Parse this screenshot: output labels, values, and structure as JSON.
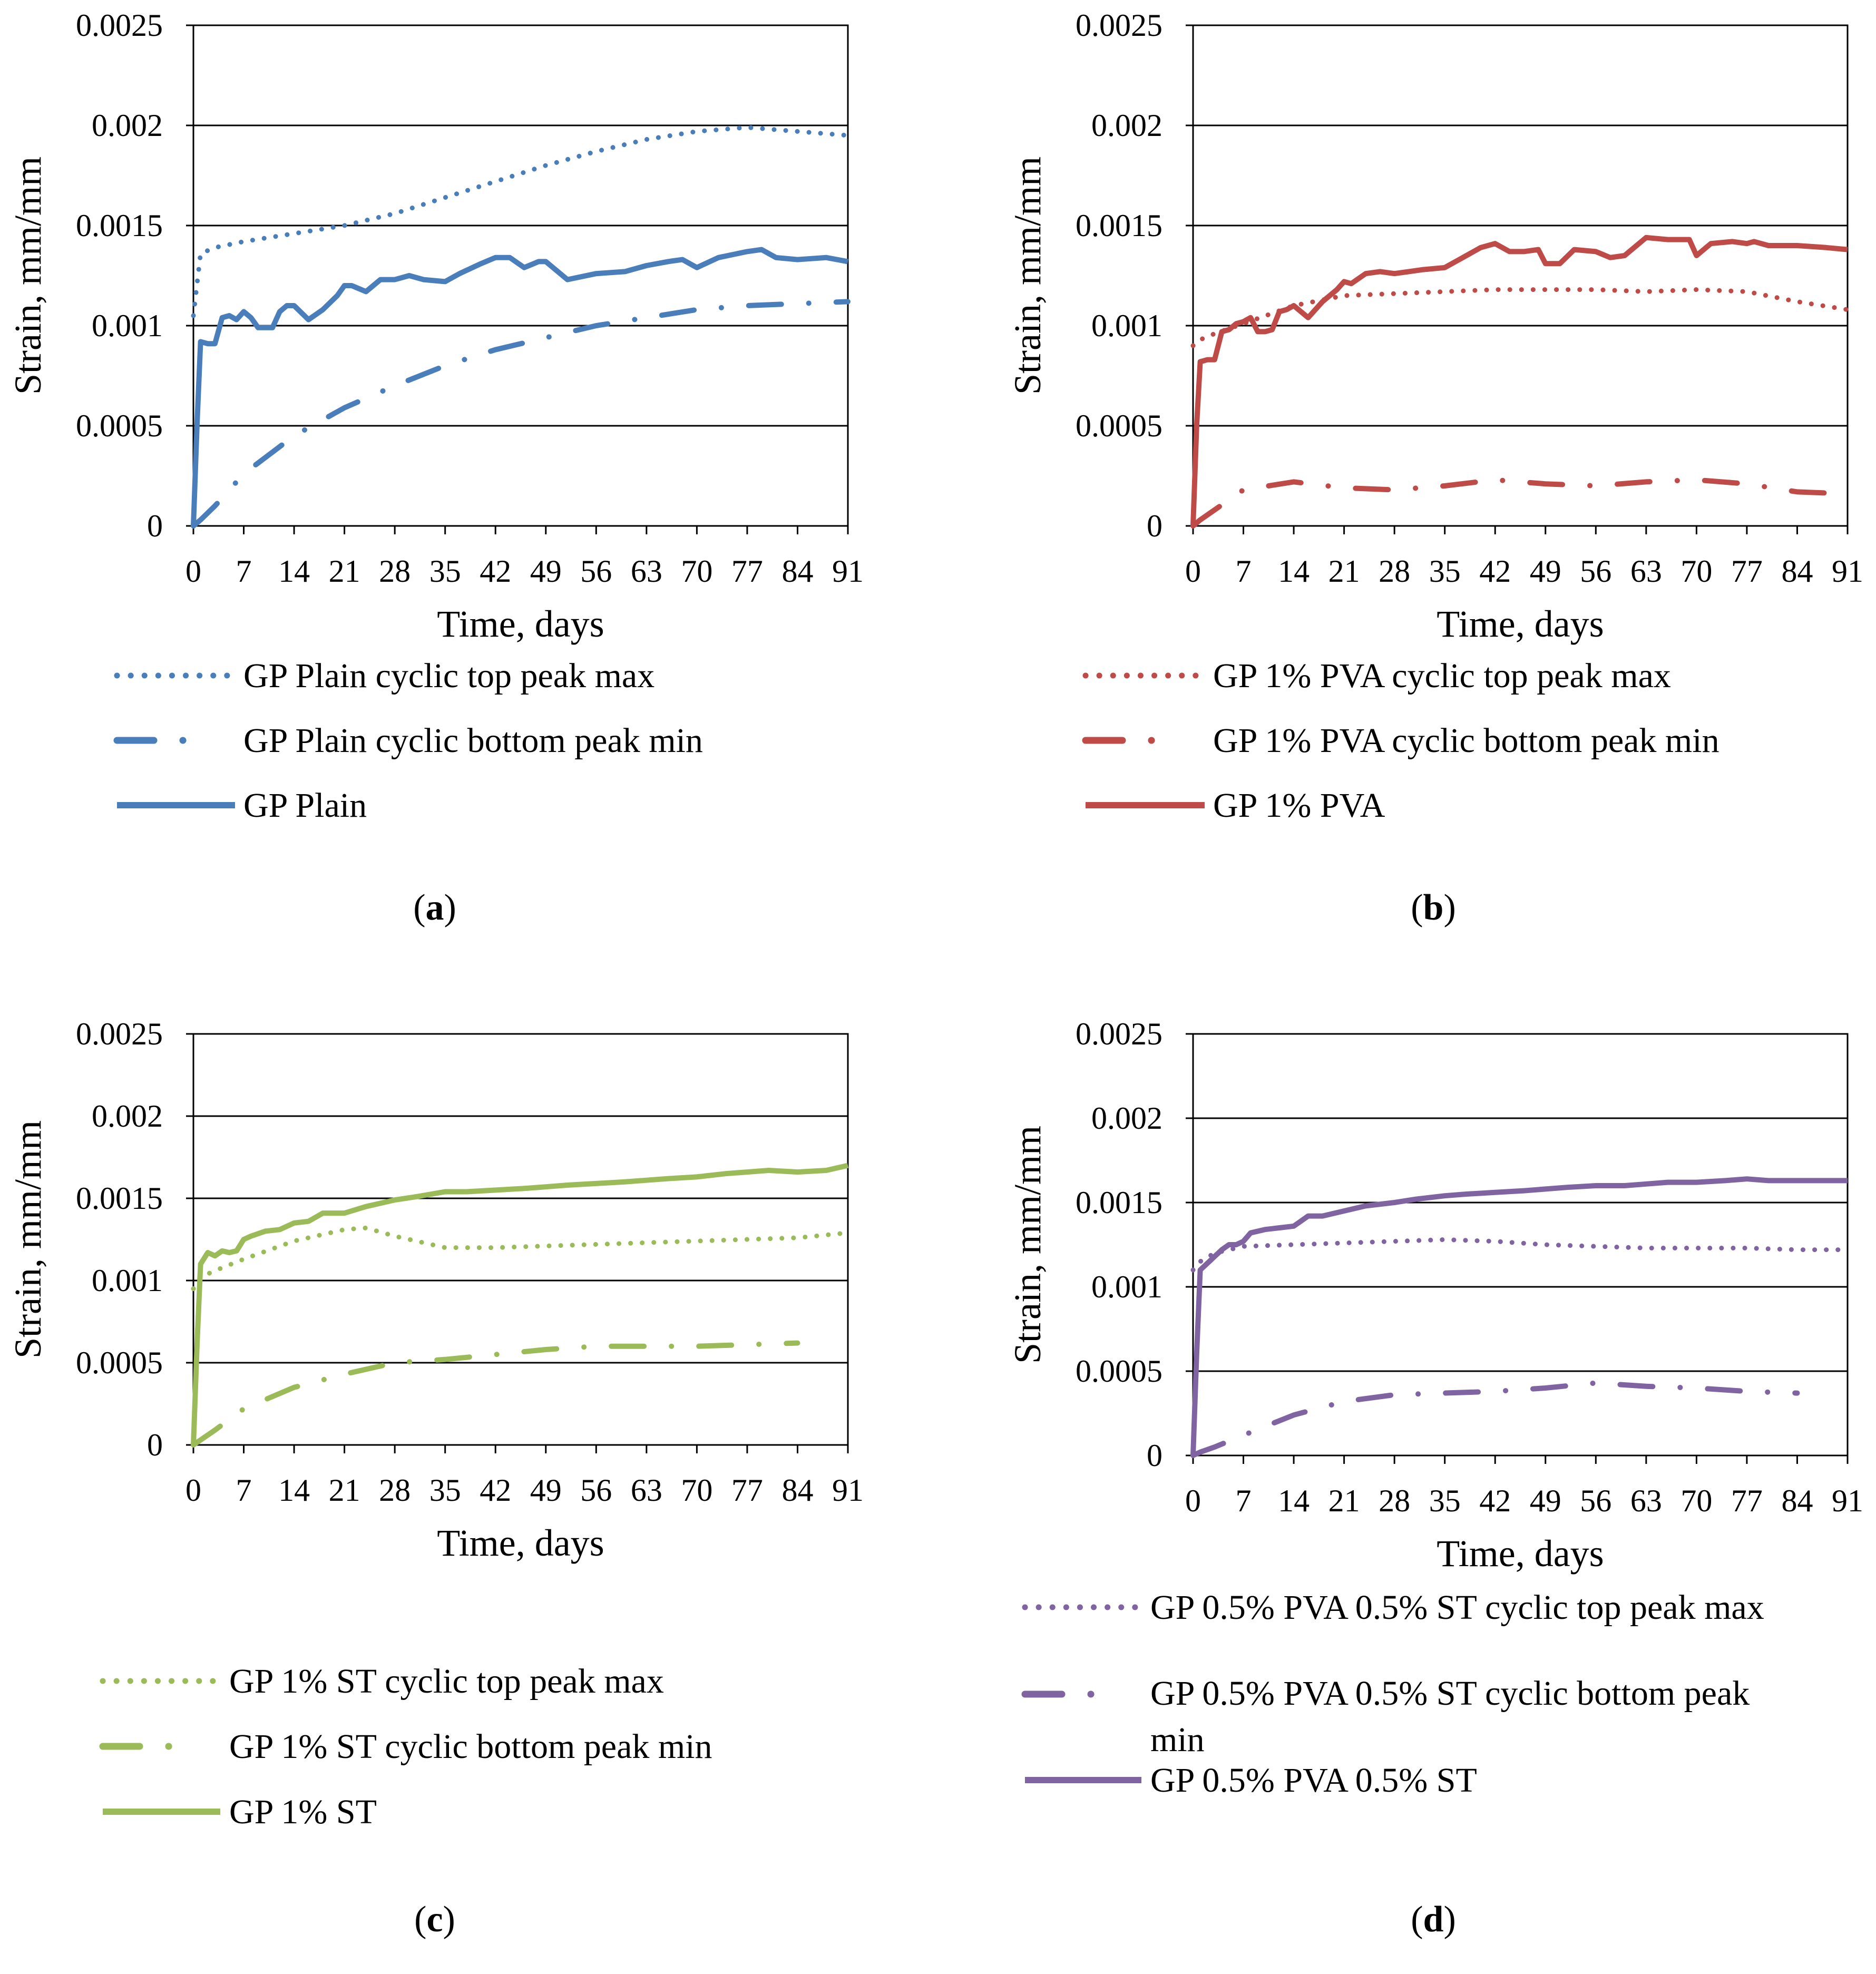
{
  "chart_data": [
    {
      "id": "a",
      "type": "line",
      "panel_label": "a",
      "title": "",
      "xlabel": "Time, days",
      "ylabel": "Strain, mm/mm",
      "xlim": [
        0,
        91
      ],
      "ylim": [
        0,
        0.0025
      ],
      "x_ticks": [
        "0",
        "7",
        "14",
        "21",
        "28",
        "35",
        "42",
        "49",
        "56",
        "63",
        "70",
        "77",
        "84",
        "91"
      ],
      "y_ticks": [
        "0",
        "0.0005",
        "0.001",
        "0.0015",
        "0.002",
        "0.0025"
      ],
      "grid": true,
      "legend_position": "bottom",
      "colors": {
        "series": "#4a7ebb"
      },
      "series": [
        {
          "name": "GP Plain cyclic top peak max",
          "style": "dotted",
          "x": [
            0,
            1,
            3,
            7,
            14,
            21,
            28,
            35,
            42,
            49,
            56,
            63,
            70,
            77,
            84,
            91
          ],
          "y": [
            0.00105,
            0.00136,
            0.00139,
            0.00142,
            0.00146,
            0.0015,
            0.00156,
            0.00164,
            0.00172,
            0.0018,
            0.00187,
            0.00193,
            0.00197,
            0.00199,
            0.00197,
            0.00195
          ]
        },
        {
          "name": "GP Plain cyclic bottom peak min",
          "style": "dashdot",
          "x": [
            0,
            1,
            3,
            7,
            14,
            21,
            28,
            35,
            42,
            49,
            56,
            63,
            70,
            77,
            84,
            91
          ],
          "y": [
            0.0,
            3e-05,
            0.0001,
            0.00026,
            0.00045,
            0.00059,
            0.0007,
            0.0008,
            0.00088,
            0.00094,
            0.001,
            0.00104,
            0.00108,
            0.0011,
            0.00111,
            0.00112
          ]
        },
        {
          "name": "GP Plain",
          "style": "solid",
          "x": [
            0,
            0.5,
            1,
            2,
            3,
            4,
            5,
            6,
            7,
            8,
            9,
            10,
            11,
            12,
            13,
            14,
            16,
            18,
            20,
            21,
            22,
            24,
            26,
            28,
            30,
            32,
            35,
            37,
            40,
            42,
            44,
            46,
            48,
            49,
            52,
            56,
            60,
            63,
            66,
            68,
            70,
            73,
            77,
            79,
            81,
            84,
            88,
            91
          ],
          "y": [
            0.0,
            0.0005,
            0.00092,
            0.00091,
            0.00091,
            0.00104,
            0.00105,
            0.00103,
            0.00107,
            0.00104,
            0.00099,
            0.00099,
            0.00099,
            0.00107,
            0.0011,
            0.0011,
            0.00103,
            0.00108,
            0.00115,
            0.0012,
            0.0012,
            0.00117,
            0.00123,
            0.00123,
            0.00125,
            0.00123,
            0.00122,
            0.00126,
            0.00131,
            0.00134,
            0.00134,
            0.00129,
            0.00132,
            0.00132,
            0.00123,
            0.00126,
            0.00127,
            0.0013,
            0.00132,
            0.00133,
            0.00129,
            0.00134,
            0.00137,
            0.00138,
            0.00134,
            0.00133,
            0.00134,
            0.00132
          ]
        }
      ]
    },
    {
      "id": "b",
      "type": "line",
      "panel_label": "b",
      "title": "",
      "xlabel": "Time, days",
      "ylabel": "Strain, mm/mm",
      "xlim": [
        0,
        91
      ],
      "ylim": [
        0,
        0.0025
      ],
      "x_ticks": [
        "0",
        "7",
        "14",
        "21",
        "28",
        "35",
        "42",
        "49",
        "56",
        "63",
        "70",
        "77",
        "84",
        "91"
      ],
      "y_ticks": [
        "0",
        "0.0005",
        "0.001",
        "0.0015",
        "0.002",
        "0.0025"
      ],
      "grid": true,
      "legend_position": "bottom",
      "colors": {
        "series": "#be4b48"
      },
      "series": [
        {
          "name": "GP 1% PVA cyclic top peak max",
          "style": "dotted",
          "x": [
            0,
            1,
            3,
            7,
            14,
            21,
            28,
            35,
            42,
            49,
            56,
            63,
            70,
            77,
            84,
            91
          ],
          "y": [
            0.0009,
            0.00093,
            0.00096,
            0.00101,
            0.0011,
            0.00115,
            0.00116,
            0.00117,
            0.00118,
            0.00118,
            0.00118,
            0.00117,
            0.00118,
            0.00117,
            0.00112,
            0.00108
          ]
        },
        {
          "name": "GP 1% PVA cyclic bottom peak min",
          "style": "dashdot",
          "x": [
            0,
            1,
            3,
            7,
            14,
            21,
            28,
            35,
            42,
            49,
            56,
            63,
            70,
            77,
            84,
            91
          ],
          "y": [
            0.0,
            3e-05,
            8e-05,
            0.00018,
            0.00022,
            0.00019,
            0.00018,
            0.0002,
            0.00023,
            0.00021,
            0.0002,
            0.00022,
            0.00023,
            0.00021,
            0.00017,
            0.00016
          ]
        },
        {
          "name": "GP 1% PVA",
          "style": "solid",
          "x": [
            0,
            0.5,
            1,
            2,
            3,
            4,
            5,
            6,
            7,
            8,
            9,
            10,
            11,
            12,
            13,
            14,
            16,
            18,
            20,
            21,
            22,
            24,
            26,
            28,
            30,
            32,
            35,
            37,
            40,
            42,
            44,
            46,
            48,
            49,
            51,
            53,
            56,
            58,
            60,
            63,
            66,
            69,
            70,
            72,
            75,
            77,
            78,
            80,
            84,
            88,
            91
          ],
          "y": [
            0.0,
            0.0005,
            0.00082,
            0.00083,
            0.00083,
            0.00097,
            0.00098,
            0.00101,
            0.00102,
            0.00104,
            0.00097,
            0.00097,
            0.00098,
            0.00107,
            0.00108,
            0.0011,
            0.00104,
            0.00112,
            0.00118,
            0.00122,
            0.00121,
            0.00126,
            0.00127,
            0.00126,
            0.00127,
            0.00128,
            0.00129,
            0.00133,
            0.00139,
            0.00141,
            0.00137,
            0.00137,
            0.00138,
            0.00131,
            0.00131,
            0.00138,
            0.00137,
            0.00134,
            0.00135,
            0.00144,
            0.00143,
            0.00143,
            0.00135,
            0.00141,
            0.00142,
            0.00141,
            0.00142,
            0.0014,
            0.0014,
            0.00139,
            0.00138
          ]
        }
      ]
    },
    {
      "id": "c",
      "type": "line",
      "panel_label": "c",
      "title": "",
      "xlabel": "Time, days",
      "ylabel": "Strain, mm/mm",
      "xlim": [
        0,
        91
      ],
      "ylim": [
        0,
        0.0025
      ],
      "x_ticks": [
        "0",
        "7",
        "14",
        "21",
        "28",
        "35",
        "42",
        "49",
        "56",
        "63",
        "70",
        "77",
        "84",
        "91"
      ],
      "y_ticks": [
        "0",
        "0.0005",
        "0.001",
        "0.0015",
        "0.002",
        "0.0025"
      ],
      "grid": true,
      "legend_position": "bottom",
      "colors": {
        "series": "#9bbb59"
      },
      "series": [
        {
          "name": "GP 1% ST cyclic top peak max",
          "style": "dotted",
          "x": [
            0,
            1,
            3,
            7,
            14,
            21,
            24,
            28,
            35,
            42,
            49,
            56,
            63,
            70,
            77,
            84,
            91
          ],
          "y": [
            0.00095,
            0.00102,
            0.00106,
            0.00113,
            0.00124,
            0.00131,
            0.00132,
            0.00127,
            0.0012,
            0.0012,
            0.00121,
            0.00122,
            0.00123,
            0.00124,
            0.00125,
            0.00126,
            0.00129
          ]
        },
        {
          "name": "GP 1% ST cyclic bottom peak min",
          "style": "dashdot",
          "x": [
            0,
            1,
            3,
            7,
            14,
            21,
            28,
            35,
            42,
            49,
            56,
            63,
            70,
            77,
            84
          ],
          "y": [
            0.0,
            3e-05,
            9e-05,
            0.00022,
            0.00035,
            0.00043,
            0.0005,
            0.00052,
            0.00055,
            0.00058,
            0.0006,
            0.0006,
            0.0006,
            0.00061,
            0.00062
          ]
        },
        {
          "name": "GP 1% ST",
          "style": "solid",
          "x": [
            0,
            0.5,
            1,
            2,
            3,
            4,
            5,
            6,
            7,
            8,
            10,
            12,
            14,
            16,
            18,
            21,
            24,
            28,
            31,
            35,
            38,
            42,
            46,
            49,
            52,
            56,
            60,
            63,
            66,
            70,
            74,
            77,
            80,
            84,
            88,
            91
          ],
          "y": [
            0.0,
            0.0006,
            0.0011,
            0.00117,
            0.00115,
            0.00118,
            0.00117,
            0.00118,
            0.00125,
            0.00127,
            0.0013,
            0.00131,
            0.00135,
            0.00136,
            0.00141,
            0.00141,
            0.00145,
            0.00149,
            0.00151,
            0.00154,
            0.00154,
            0.00155,
            0.00156,
            0.00157,
            0.00158,
            0.00159,
            0.0016,
            0.00161,
            0.00162,
            0.00163,
            0.00165,
            0.00166,
            0.00167,
            0.00166,
            0.00167,
            0.0017
          ]
        }
      ]
    },
    {
      "id": "d",
      "type": "line",
      "panel_label": "d",
      "title": "",
      "xlabel": "Time, days",
      "ylabel": "Strain, mm/mm",
      "xlim": [
        0,
        91
      ],
      "ylim": [
        0,
        0.0025
      ],
      "x_ticks": [
        "0",
        "7",
        "14",
        "21",
        "28",
        "35",
        "42",
        "49",
        "56",
        "63",
        "70",
        "77",
        "84",
        "91"
      ],
      "y_ticks": [
        "0",
        "0.0005",
        "0.001",
        "0.0015",
        "0.002",
        "0.0025"
      ],
      "grid": true,
      "legend_position": "bottom",
      "colors": {
        "series": "#8064a2"
      },
      "series": [
        {
          "name": "GP 0.5% PVA 0.5% ST cyclic top peak max",
          "style": "dotted",
          "x": [
            0,
            1,
            3,
            7,
            14,
            21,
            28,
            35,
            42,
            49,
            56,
            63,
            70,
            77,
            84,
            91
          ],
          "y": [
            0.0011,
            0.00115,
            0.0012,
            0.00124,
            0.00125,
            0.00126,
            0.00127,
            0.00128,
            0.00127,
            0.00125,
            0.00124,
            0.00123,
            0.00123,
            0.00123,
            0.00122,
            0.00122
          ]
        },
        {
          "name": "GP 0.5% PVA 0.5% ST cyclic bottom peak min",
          "style": "dashdot",
          "x": [
            0,
            1,
            3,
            7,
            14,
            21,
            28,
            35,
            42,
            49,
            56,
            63,
            70,
            77,
            84
          ],
          "y": [
            0.0,
            2e-05,
            5e-05,
            0.00012,
            0.00024,
            0.00032,
            0.00036,
            0.00037,
            0.00038,
            0.0004,
            0.00043,
            0.00041,
            0.0004,
            0.00038,
            0.00037
          ]
        },
        {
          "name": "GP 0.5% PVA 0.5% ST",
          "style": "solid",
          "x": [
            0,
            0.5,
            1,
            2,
            3,
            4,
            5,
            6,
            7,
            8,
            10,
            12,
            14,
            16,
            18,
            21,
            24,
            28,
            31,
            35,
            38,
            42,
            46,
            49,
            52,
            56,
            60,
            63,
            66,
            70,
            74,
            77,
            80,
            84,
            88,
            91
          ],
          "y": [
            0.0,
            0.0006,
            0.0011,
            0.00114,
            0.00118,
            0.00122,
            0.00125,
            0.00125,
            0.00127,
            0.00132,
            0.00134,
            0.00135,
            0.00136,
            0.00142,
            0.00142,
            0.00145,
            0.00148,
            0.0015,
            0.00152,
            0.00154,
            0.00155,
            0.00156,
            0.00157,
            0.00158,
            0.00159,
            0.0016,
            0.0016,
            0.00161,
            0.00162,
            0.00162,
            0.00163,
            0.00164,
            0.00163,
            0.00163,
            0.00163,
            0.00163
          ]
        }
      ]
    }
  ]
}
